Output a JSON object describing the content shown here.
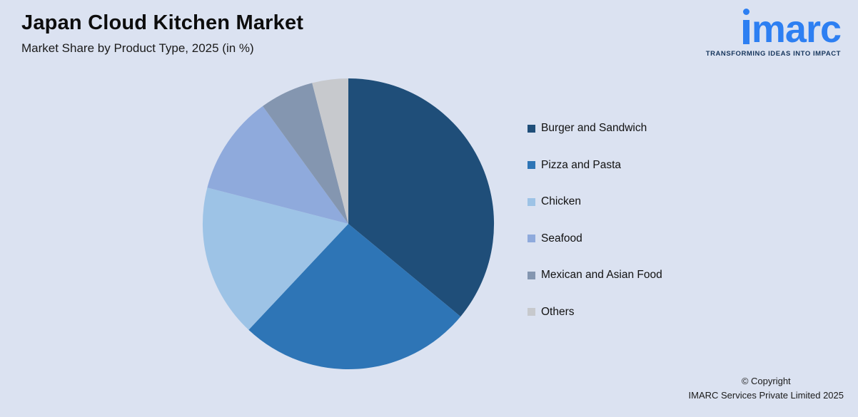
{
  "header": {
    "title": "Japan Cloud Kitchen Market",
    "subtitle": "Market Share by Product Type, 2025 (in %)",
    "logo": {
      "name": "imarc",
      "word_rest": "marc",
      "tagline": "TRANSFORMING IDEAS INTO IMPACT"
    }
  },
  "chart_data": {
    "type": "pie",
    "title": "Japan Cloud Kitchen Market",
    "subtitle": "Market Share by Product Type, 2025 (in %)",
    "unit": "%",
    "start_angle_deg": 0,
    "direction": "clockwise",
    "legend_position": "right",
    "labels": [
      "Burger and Sandwich",
      "Pizza and Pasta",
      "Chicken",
      "Seafood",
      "Mexican and Asian Food",
      "Others"
    ],
    "values": [
      36,
      26,
      17,
      11,
      6,
      4
    ],
    "colors": [
      "#1f4e79",
      "#2e75b6",
      "#9dc3e6",
      "#8faadc",
      "#8496b0",
      "#c7c9cd"
    ]
  },
  "footer": {
    "copyright_line1": "© Copyright",
    "copyright_line2": "IMARC Services Private Limited 2025"
  },
  "colors": {
    "background": "#dbe2f1",
    "logo_blue": "#2d7ff2",
    "tagline_navy": "#16355c",
    "title_black": "#0d0d0d"
  }
}
